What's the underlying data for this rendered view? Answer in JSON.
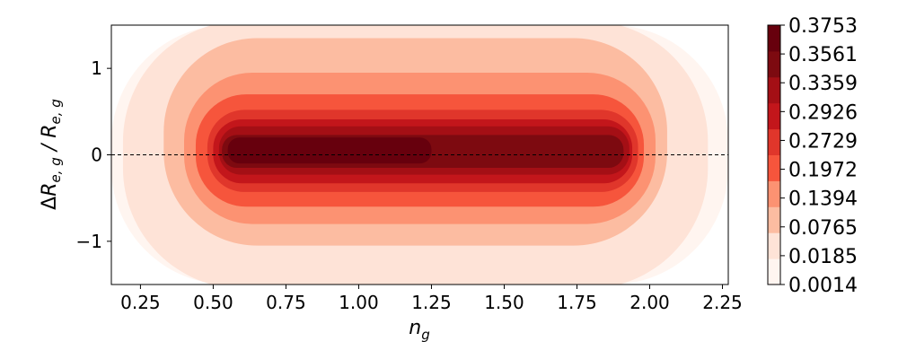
{
  "chart_data": {
    "type": "heatmap",
    "subtype": "filled-contour",
    "title": "",
    "xlabel": "n_g",
    "ylabel": "ΔR_{e, g} / R_{e, g}",
    "xlim": [
      0.15,
      2.27
    ],
    "ylim": [
      -1.5,
      1.5
    ],
    "x_ticks": [
      0.25,
      0.5,
      0.75,
      1.0,
      1.25,
      1.5,
      1.75,
      2.0,
      2.25
    ],
    "x_tick_labels": [
      "0.25",
      "0.50",
      "0.75",
      "1.00",
      "1.25",
      "1.50",
      "1.75",
      "2.00",
      "2.25"
    ],
    "y_ticks": [
      -1,
      0,
      1
    ],
    "y_tick_labels": [
      "−1",
      "0",
      "1"
    ],
    "reference_line": {
      "y": 0,
      "style": "dashed",
      "color": "#000000"
    },
    "colormap": "Reds",
    "colorbar": {
      "levels": [
        0.0014,
        0.0185,
        0.0765,
        0.1394,
        0.1972,
        0.2729,
        0.2926,
        0.3359,
        0.3561,
        0.3753
      ],
      "labels": [
        "0.0014",
        "0.0185",
        "0.0765",
        "0.1394",
        "0.1972",
        "0.2729",
        "0.2926",
        "0.3359",
        "0.3561",
        "0.3753"
      ],
      "colors": [
        "#fff5f0",
        "#fee3d7",
        "#fcbca1",
        "#fc9272",
        "#f6553c",
        "#e0362b",
        "#c3161b",
        "#a40f15",
        "#7d0a10",
        "#67000d"
      ]
    },
    "contour_regions": [
      {
        "level": 0.0014,
        "x_range": [
          0.15,
          2.27
        ],
        "y_range": [
          -1.5,
          1.5
        ]
      },
      {
        "level": 0.0185,
        "x_range": [
          0.19,
          2.2
        ],
        "y_range": [
          -1.55,
          1.55
        ]
      },
      {
        "level": 0.0765,
        "x_range": [
          0.33,
          2.06
        ],
        "y_range": [
          -1.05,
          1.35
        ]
      },
      {
        "level": 0.1394,
        "x_range": [
          0.4,
          2.02
        ],
        "y_range": [
          -0.8,
          0.95
        ]
      },
      {
        "level": 0.1972,
        "x_range": [
          0.44,
          1.98
        ],
        "y_range": [
          -0.6,
          0.7
        ]
      },
      {
        "level": 0.2729,
        "x_range": [
          0.48,
          1.96
        ],
        "y_range": [
          -0.43,
          0.52
        ]
      },
      {
        "level": 0.2926,
        "x_range": [
          0.5,
          1.94
        ],
        "y_range": [
          -0.33,
          0.41
        ]
      },
      {
        "level": 0.3359,
        "x_range": [
          0.52,
          1.93
        ],
        "y_range": [
          -0.23,
          0.33
        ]
      },
      {
        "level": 0.3561,
        "x_range": [
          0.53,
          1.91
        ],
        "y_range": [
          -0.15,
          0.23
        ]
      },
      {
        "level": 0.3753,
        "x_range": [
          0.55,
          1.25
        ],
        "y_range": [
          -0.1,
          0.2
        ]
      }
    ]
  }
}
